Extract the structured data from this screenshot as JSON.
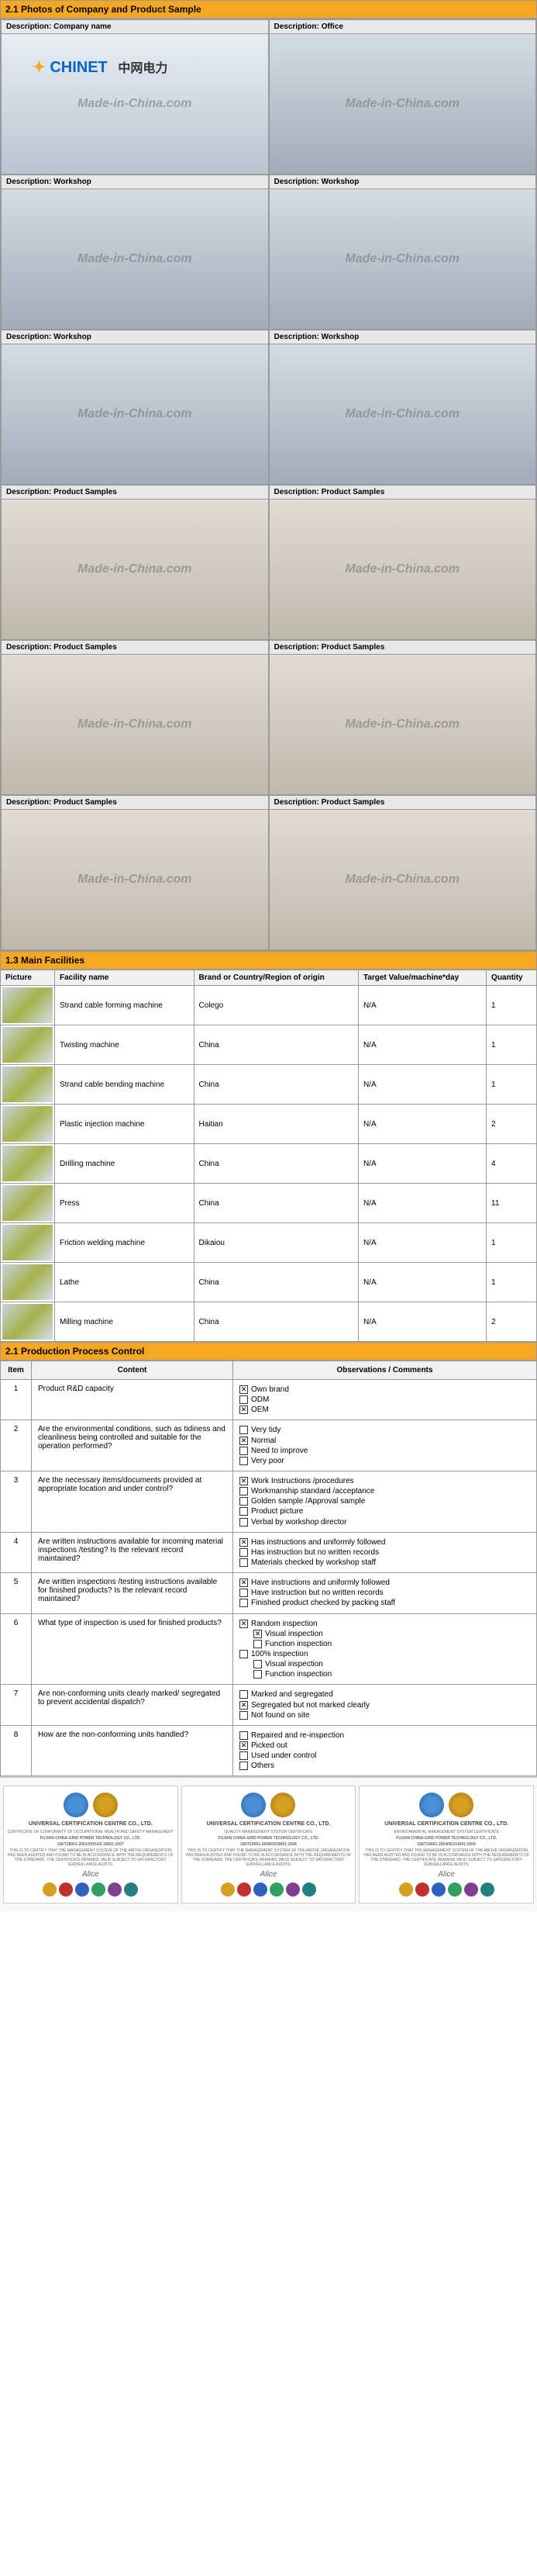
{
  "sections": {
    "photos": {
      "title": "2.1  Photos of Company and Product Sample"
    },
    "facilities": {
      "title": "1.3 Main Facilities"
    },
    "process": {
      "title": "2.1  Production Process Control"
    }
  },
  "watermark": "Made-in-China.com",
  "company_logo": "CHINET",
  "company_cn": "中网电力",
  "photo_labels": {
    "prefix": "Description:",
    "company": "Company name",
    "office": "Office",
    "workshop": "Workshop",
    "samples": "Product Samples"
  },
  "photo_grid": [
    {
      "label": "company",
      "type": "company",
      "show_logo": true
    },
    {
      "label": "office",
      "type": "workshop"
    },
    {
      "label": "workshop",
      "type": "workshop"
    },
    {
      "label": "workshop",
      "type": "workshop"
    },
    {
      "label": "workshop",
      "type": "workshop"
    },
    {
      "label": "workshop",
      "type": "workshop"
    },
    {
      "label": "samples",
      "type": "samples"
    },
    {
      "label": "samples",
      "type": "samples"
    },
    {
      "label": "samples",
      "type": "samples"
    },
    {
      "label": "samples",
      "type": "samples"
    },
    {
      "label": "samples",
      "type": "samples"
    },
    {
      "label": "samples",
      "type": "samples"
    }
  ],
  "facilities_columns": [
    "Picture",
    "Facility name",
    "Brand or Country/Region of origin",
    "Target Value/machine*day",
    "Quantity"
  ],
  "facilities_rows": [
    {
      "name": "Strand cable forming machine",
      "brand": "Colego",
      "target": "N/A",
      "qty": "1"
    },
    {
      "name": "Twisting machine",
      "brand": "China",
      "target": "N/A",
      "qty": "1"
    },
    {
      "name": "Strand cable bending machine",
      "brand": "China",
      "target": "N/A",
      "qty": "1"
    },
    {
      "name": "Plastic injection machine",
      "brand": "Haitian",
      "target": "N/A",
      "qty": "2"
    },
    {
      "name": "Drilling machine",
      "brand": "China",
      "target": "N/A",
      "qty": "4"
    },
    {
      "name": "Press",
      "brand": "China",
      "target": "N/A",
      "qty": "11"
    },
    {
      "name": "Friction welding machine",
      "brand": "Dikaiou",
      "target": "N/A",
      "qty": "1"
    },
    {
      "name": "Lathe",
      "brand": "China",
      "target": "N/A",
      "qty": "1"
    },
    {
      "name": "Milling machine",
      "brand": "China",
      "target": "N/A",
      "qty": "2"
    }
  ],
  "process_columns": [
    "Item",
    "Content",
    "Observations / Comments"
  ],
  "process_rows": [
    {
      "item": "1",
      "content": "Product R&D capacity",
      "options": [
        {
          "label": "Own brand",
          "checked": true
        },
        {
          "label": "ODM",
          "checked": false
        },
        {
          "label": "OEM",
          "checked": true
        }
      ]
    },
    {
      "item": "2",
      "content": "Are the environmental conditions, such as tidiness and cleanliness being controlled and suitable for the operation performed?",
      "options": [
        {
          "label": "Very tidy",
          "checked": false
        },
        {
          "label": "Normal",
          "checked": true
        },
        {
          "label": "Need to improve",
          "checked": false
        },
        {
          "label": "Very poor",
          "checked": false
        }
      ]
    },
    {
      "item": "3",
      "content": "Are the necessary items/documents provided at appropriate location and under control?",
      "options": [
        {
          "label": "Work Instructions /procedures",
          "checked": true
        },
        {
          "label": "Workmanship standard /acceptance",
          "checked": false
        },
        {
          "label": "Golden sample /Approval sample",
          "checked": false
        },
        {
          "label": "Product picture",
          "checked": false
        },
        {
          "label": "Verbal by workshop director",
          "checked": false
        }
      ]
    },
    {
      "item": "4",
      "content": "Are written instructions available for incoming material inspections /testing? Is the relevant record maintained?",
      "options": [
        {
          "label": "Has instructions and uniformly followed",
          "checked": true
        },
        {
          "label": "Has instruction but no written records",
          "checked": false
        },
        {
          "label": "Materials checked by workshop staff",
          "checked": false
        }
      ]
    },
    {
      "item": "5",
      "content": "Are written inspections /testing instructions available for finished products? Is the relevant record maintained?",
      "options": [
        {
          "label": "Have instructions and uniformly followed",
          "checked": true
        },
        {
          "label": "Have instruction but no written records",
          "checked": false
        },
        {
          "label": "Finished product checked by packing staff",
          "checked": false
        }
      ]
    },
    {
      "item": "6",
      "content": "What type of inspection is used for finished products?",
      "options": [
        {
          "label": "Random inspection",
          "checked": true
        },
        {
          "label": "Visual inspection",
          "checked": true,
          "indent": true
        },
        {
          "label": "Function inspection",
          "checked": false,
          "indent": true
        },
        {
          "label": "100% inspection",
          "checked": false
        },
        {
          "label": "Visual inspection",
          "checked": false,
          "indent": true
        },
        {
          "label": "Function inspection",
          "checked": false,
          "indent": true
        }
      ]
    },
    {
      "item": "7",
      "content": "Are non-conforming units clearly marked/ segregated to prevent accidental dispatch?",
      "options": [
        {
          "label": "Marked and segregated",
          "checked": false
        },
        {
          "label": "Segregated but not marked clearly",
          "checked": true
        },
        {
          "label": "Not found on site",
          "checked": false
        }
      ]
    },
    {
      "item": "8",
      "content": "How are the non-conforming units handled?",
      "options": [
        {
          "label": "Repaired and re-inspection",
          "checked": false
        },
        {
          "label": "Picked out",
          "checked": true
        },
        {
          "label": "Used under control",
          "checked": false
        },
        {
          "label": "Others",
          "checked": false
        }
      ]
    }
  ],
  "certs": {
    "org": "UNIVERSAL CERTIFICATION CENTRE CO., LTD.",
    "company": "FUJIAN CHINA-GRID POWER TECHNOLOGY CO., LTD.",
    "items": [
      {
        "subtitle": "CERTIFICATE OF CONFORMITY OF OCCUPATIONAL HEALTH AND SAFETY MANAGEMENT",
        "std": "GB/T28001-2001/OHSAS 18001:2007"
      },
      {
        "subtitle": "QUALITY MANAGEMENT SYSTEM CERTIFICATE",
        "std": "GB/T19001-2008/ISO9001:2008"
      },
      {
        "subtitle": "ENVIRONMENTAL MANAGEMENT SYSTEM CERTIFICATE",
        "std": "GB/T24001-2004/ISO14001:2004"
      }
    ],
    "badge_colors": [
      "#d4a020",
      "#c03030",
      "#3060c0",
      "#30a060",
      "#804090",
      "#208080"
    ]
  }
}
